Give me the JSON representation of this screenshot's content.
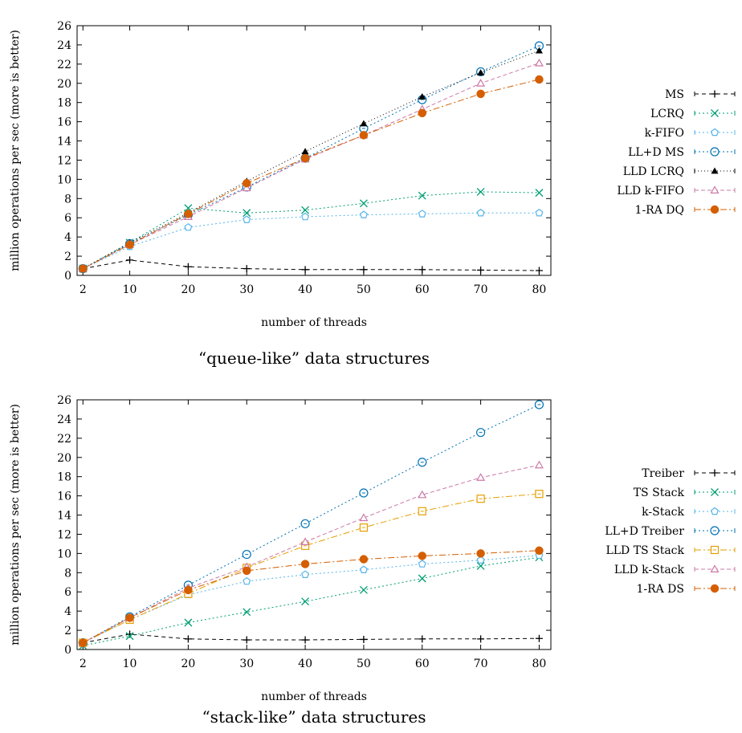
{
  "chart_data": [
    {
      "type": "line",
      "caption": "“queue-like” data structures",
      "xlabel": "number of threads",
      "ylabel": "million operations per sec (more is better)",
      "x": [
        2,
        10,
        20,
        30,
        40,
        50,
        60,
        70,
        80
      ],
      "xticks": [
        2,
        10,
        20,
        30,
        40,
        50,
        60,
        70,
        80
      ],
      "xlim": [
        1,
        82
      ],
      "ylim": [
        0,
        26
      ],
      "yticks": [
        0,
        2,
        4,
        6,
        8,
        10,
        12,
        14,
        16,
        18,
        20,
        22,
        24,
        26
      ],
      "grid": false,
      "legend_position": "right",
      "series": [
        {
          "name": "MS",
          "color": "#000000",
          "dash": "5,4",
          "marker": "plus",
          "values": [
            0.7,
            1.6,
            0.9,
            0.7,
            0.6,
            0.6,
            0.6,
            0.55,
            0.5
          ]
        },
        {
          "name": "LCRQ",
          "color": "#009e73",
          "dash": "2,3",
          "marker": "cross",
          "values": [
            0.7,
            3.4,
            7.0,
            6.5,
            6.8,
            7.5,
            8.3,
            8.7,
            8.6
          ]
        },
        {
          "name": "k-FIFO",
          "color": "#56b4e9",
          "dash": "2,3",
          "marker": "pentagon",
          "values": [
            0.7,
            3.0,
            5.0,
            5.8,
            6.1,
            6.3,
            6.4,
            6.5,
            6.5
          ]
        },
        {
          "name": "LL+D MS",
          "color": "#0072b2",
          "dash": "2,3",
          "marker": "circle",
          "values": [
            0.7,
            3.3,
            6.3,
            9.2,
            12.2,
            15.3,
            18.3,
            21.2,
            23.9
          ]
        },
        {
          "name": "LLD LCRQ",
          "color": "#000000",
          "dash": "1,3",
          "marker": "triangle-filled",
          "values": [
            0.7,
            3.4,
            6.5,
            9.8,
            12.9,
            15.8,
            18.6,
            21.1,
            23.4
          ]
        },
        {
          "name": "LLD k-FIFO",
          "color": "#cc79a7",
          "dash": "5,3",
          "marker": "triangle",
          "values": [
            0.7,
            3.2,
            6.1,
            9.1,
            12.1,
            14.6,
            17.3,
            20.0,
            22.1
          ]
        },
        {
          "name": "1-RA DQ",
          "color": "#d55e00",
          "dash": "8,3,2,3",
          "marker": "circle-filled",
          "values": [
            0.7,
            3.2,
            6.4,
            9.6,
            12.2,
            14.6,
            16.9,
            18.9,
            20.4
          ]
        }
      ]
    },
    {
      "type": "line",
      "caption": "“stack-like” data structures",
      "xlabel": "number of threads",
      "ylabel": "million operations per sec (more is better)",
      "x": [
        2,
        10,
        20,
        30,
        40,
        50,
        60,
        70,
        80
      ],
      "xticks": [
        2,
        10,
        20,
        30,
        40,
        50,
        60,
        70,
        80
      ],
      "xlim": [
        1,
        82
      ],
      "ylim": [
        0,
        26
      ],
      "yticks": [
        0,
        2,
        4,
        6,
        8,
        10,
        12,
        14,
        16,
        18,
        20,
        22,
        24,
        26
      ],
      "grid": false,
      "legend_position": "right",
      "series": [
        {
          "name": "Treiber",
          "color": "#000000",
          "dash": "5,4",
          "marker": "plus",
          "values": [
            0.7,
            1.6,
            1.1,
            1.0,
            1.0,
            1.05,
            1.1,
            1.1,
            1.15
          ]
        },
        {
          "name": "TS Stack",
          "color": "#009e73",
          "dash": "2,3",
          "marker": "cross",
          "values": [
            0.4,
            1.4,
            2.8,
            3.9,
            5.0,
            6.2,
            7.4,
            8.7,
            9.6
          ]
        },
        {
          "name": "k-Stack",
          "color": "#56b4e9",
          "dash": "2,3",
          "marker": "pentagon",
          "values": [
            0.7,
            3.1,
            5.7,
            7.1,
            7.8,
            8.3,
            8.9,
            9.3,
            9.8
          ]
        },
        {
          "name": "LL+D Treiber",
          "color": "#0072b2",
          "dash": "2,3",
          "marker": "circle",
          "values": [
            0.7,
            3.4,
            6.7,
            9.9,
            13.1,
            16.3,
            19.5,
            22.6,
            25.5
          ]
        },
        {
          "name": "LLD TS Stack",
          "color": "#e69f00",
          "dash": "8,3,2,3",
          "marker": "square",
          "values": [
            0.7,
            3.1,
            5.8,
            8.5,
            10.8,
            12.7,
            14.4,
            15.7,
            16.2
          ]
        },
        {
          "name": "LLD k-Stack",
          "color": "#cc79a7",
          "dash": "5,3",
          "marker": "triangle",
          "values": [
            0.7,
            3.3,
            6.4,
            8.6,
            11.2,
            13.7,
            16.1,
            17.9,
            19.2
          ]
        },
        {
          "name": "1-RA DS",
          "color": "#d55e00",
          "dash": "8,3,2,3",
          "marker": "circle-filled",
          "values": [
            0.7,
            3.3,
            6.2,
            8.2,
            8.9,
            9.4,
            9.75,
            10.0,
            10.3
          ]
        }
      ]
    }
  ]
}
